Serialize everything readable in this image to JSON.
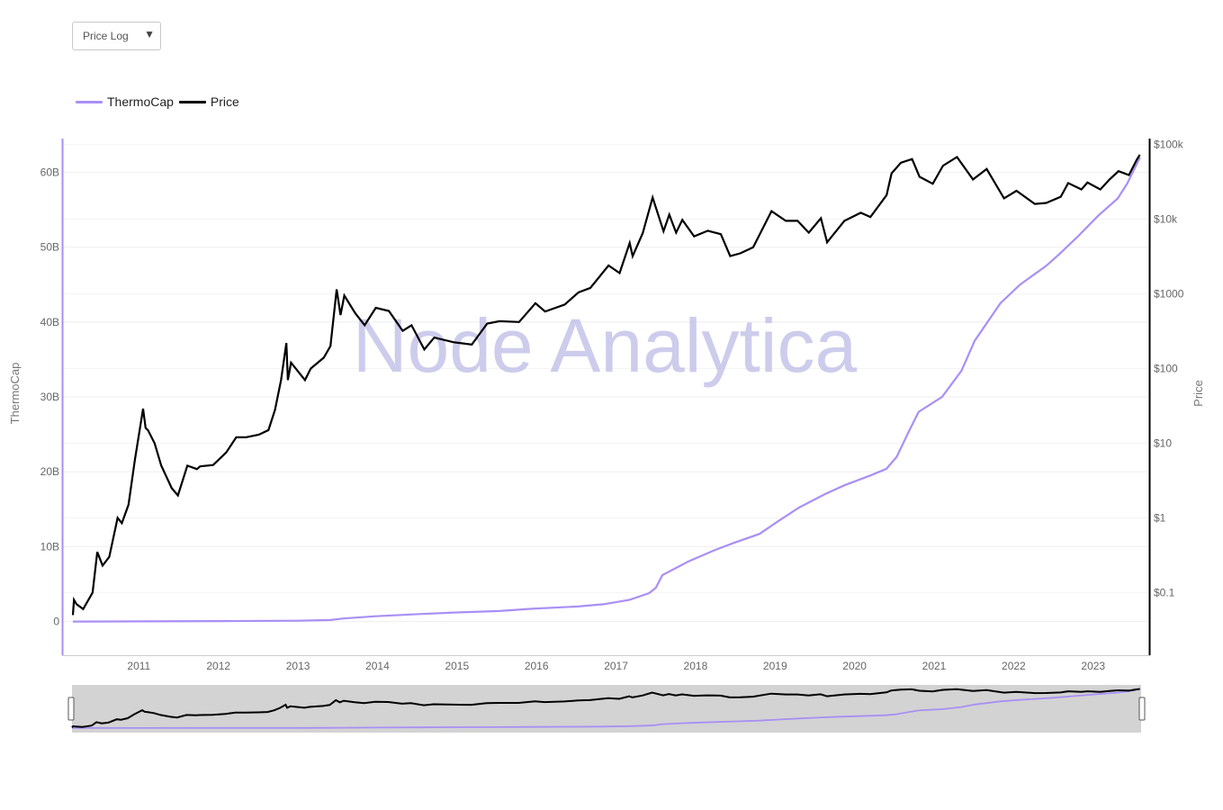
{
  "dropdown": {
    "selected": "Price Log"
  },
  "legend": [
    {
      "name": "ThermoCap",
      "color": "#a98ff5"
    },
    {
      "name": "Price",
      "color": "#000000"
    }
  ],
  "watermark": "Node Analytica",
  "colors": {
    "thermocap": "#a98ff5",
    "price": "#000000",
    "navigator_bg": "#d3d3d3",
    "grid": "#eeeeee"
  },
  "chart_data": {
    "type": "line",
    "title": "",
    "xlabel": "",
    "x_ticks": [
      "2011",
      "2012",
      "2013",
      "2014",
      "2015",
      "2016",
      "2017",
      "2018",
      "2019",
      "2020",
      "2021",
      "2022",
      "2023"
    ],
    "left_axis": {
      "title": "ThermoCap",
      "range": [
        -4.5,
        64.5
      ],
      "tick_values": [
        0,
        10,
        20,
        30,
        40,
        50,
        60
      ],
      "tick_labels": [
        "0",
        "10B",
        "20B",
        "30B",
        "40B",
        "50B",
        "60B"
      ]
    },
    "right_axis": {
      "title": "Price",
      "scale": "log",
      "range": [
        0.0145,
        120000
      ],
      "tick_values": [
        0.1,
        1,
        10,
        100,
        1000,
        10000,
        100000
      ],
      "tick_labels": [
        "$0.1",
        "$1",
        "$10",
        "$100",
        "$1000",
        "$10k",
        "$100k"
      ]
    },
    "x_range": [
      "2010-07-15",
      "2024-03-20"
    ],
    "series": [
      {
        "name": "ThermoCap",
        "axis": "left",
        "unit": "B",
        "points": [
          [
            "2010-07-15",
            0
          ],
          [
            "2011-06-01",
            0.02
          ],
          [
            "2012-06-01",
            0.05
          ],
          [
            "2013-06-01",
            0.1
          ],
          [
            "2013-11-01",
            0.2
          ],
          [
            "2014-01-01",
            0.4
          ],
          [
            "2014-06-01",
            0.7
          ],
          [
            "2015-01-01",
            1.0
          ],
          [
            "2015-06-01",
            1.2
          ],
          [
            "2016-01-01",
            1.4
          ],
          [
            "2016-06-01",
            1.7
          ],
          [
            "2017-01-01",
            2.0
          ],
          [
            "2017-05-01",
            2.3
          ],
          [
            "2017-09-01",
            2.9
          ],
          [
            "2017-12-01",
            3.8
          ],
          [
            "2018-01-01",
            4.5
          ],
          [
            "2018-02-01",
            6.2
          ],
          [
            "2018-06-01",
            8.0
          ],
          [
            "2018-10-01",
            9.5
          ],
          [
            "2019-01-01",
            10.5
          ],
          [
            "2019-05-01",
            11.7
          ],
          [
            "2019-08-01",
            13.5
          ],
          [
            "2019-11-01",
            15.2
          ],
          [
            "2020-03-01",
            17.0
          ],
          [
            "2020-06-01",
            18.2
          ],
          [
            "2020-10-01",
            19.5
          ],
          [
            "2020-12-15",
            20.4
          ],
          [
            "2021-02-01",
            22.0
          ],
          [
            "2021-04-01",
            25.5
          ],
          [
            "2021-05-15",
            28.0
          ],
          [
            "2021-09-01",
            30.0
          ],
          [
            "2021-12-01",
            33.5
          ],
          [
            "2022-02-01",
            37.5
          ],
          [
            "2022-06-01",
            42.5
          ],
          [
            "2022-09-01",
            45.0
          ],
          [
            "2023-01-01",
            47.5
          ],
          [
            "2023-03-01",
            49.0
          ],
          [
            "2023-06-01",
            51.5
          ],
          [
            "2023-09-01",
            54.2
          ],
          [
            "2023-12-01",
            56.5
          ],
          [
            "2024-01-15",
            58.5
          ],
          [
            "2024-03-15",
            62.0
          ]
        ]
      },
      {
        "name": "Price",
        "axis": "right",
        "unit": "$",
        "points": [
          [
            "2010-07-15",
            0.05
          ],
          [
            "2010-07-20",
            0.08
          ],
          [
            "2010-08-01",
            0.07
          ],
          [
            "2010-09-01",
            0.06
          ],
          [
            "2010-10-15",
            0.1
          ],
          [
            "2010-11-06",
            0.35
          ],
          [
            "2010-12-01",
            0.23
          ],
          [
            "2011-01-01",
            0.3
          ],
          [
            "2011-02-09",
            1.0
          ],
          [
            "2011-03-01",
            0.85
          ],
          [
            "2011-04-01",
            1.5
          ],
          [
            "2011-05-01",
            6.0
          ],
          [
            "2011-06-08",
            29.0
          ],
          [
            "2011-06-20",
            16.0
          ],
          [
            "2011-07-01",
            15.0
          ],
          [
            "2011-08-01",
            10.0
          ],
          [
            "2011-09-01",
            5.0
          ],
          [
            "2011-10-20",
            2.5
          ],
          [
            "2011-11-18",
            2.0
          ],
          [
            "2012-01-01",
            5.0
          ],
          [
            "2012-02-15",
            4.5
          ],
          [
            "2012-03-01",
            4.9
          ],
          [
            "2012-05-01",
            5.1
          ],
          [
            "2012-07-01",
            7.5
          ],
          [
            "2012-08-17",
            12.0
          ],
          [
            "2012-10-01",
            12.0
          ],
          [
            "2012-12-01",
            13.0
          ],
          [
            "2013-01-15",
            15.0
          ],
          [
            "2013-02-15",
            28.0
          ],
          [
            "2013-03-15",
            70.0
          ],
          [
            "2013-04-09",
            220.0
          ],
          [
            "2013-04-16",
            70.0
          ],
          [
            "2013-05-01",
            120.0
          ],
          [
            "2013-07-05",
            70.0
          ],
          [
            "2013-08-01",
            100.0
          ],
          [
            "2013-10-01",
            140.0
          ],
          [
            "2013-11-01",
            200.0
          ],
          [
            "2013-11-30",
            1150.0
          ],
          [
            "2013-12-18",
            520.0
          ],
          [
            "2014-01-05",
            950.0
          ],
          [
            "2014-02-25",
            550.0
          ],
          [
            "2014-04-10",
            380.0
          ],
          [
            "2014-06-01",
            650.0
          ],
          [
            "2014-08-01",
            590.0
          ],
          [
            "2014-10-05",
            320.0
          ],
          [
            "2014-11-15",
            380.0
          ],
          [
            "2015-01-14",
            180.0
          ],
          [
            "2015-03-01",
            260.0
          ],
          [
            "2015-06-01",
            225.0
          ],
          [
            "2015-08-24",
            210.0
          ],
          [
            "2015-11-04",
            400.0
          ],
          [
            "2016-01-01",
            430.0
          ],
          [
            "2016-04-01",
            420.0
          ],
          [
            "2016-06-17",
            750.0
          ],
          [
            "2016-08-01",
            580.0
          ],
          [
            "2016-11-01",
            720.0
          ],
          [
            "2017-01-05",
            1050.0
          ],
          [
            "2017-03-01",
            1200.0
          ],
          [
            "2017-05-25",
            2400.0
          ],
          [
            "2017-07-16",
            1900.0
          ],
          [
            "2017-09-01",
            4800.0
          ],
          [
            "2017-09-15",
            3200.0
          ],
          [
            "2017-11-01",
            6500.0
          ],
          [
            "2017-12-17",
            19500.0
          ],
          [
            "2018-02-06",
            6900.0
          ],
          [
            "2018-03-05",
            11500.0
          ],
          [
            "2018-04-06",
            6600.0
          ],
          [
            "2018-05-05",
            9800.0
          ],
          [
            "2018-06-29",
            5900.0
          ],
          [
            "2018-09-01",
            7000.0
          ],
          [
            "2018-11-01",
            6300.0
          ],
          [
            "2018-12-15",
            3200.0
          ],
          [
            "2019-02-01",
            3500.0
          ],
          [
            "2019-04-01",
            4200.0
          ],
          [
            "2019-06-26",
            12800.0
          ],
          [
            "2019-09-01",
            9500.0
          ],
          [
            "2019-10-26",
            9500.0
          ],
          [
            "2019-12-17",
            6600.0
          ],
          [
            "2020-02-12",
            10300.0
          ],
          [
            "2020-03-12",
            4900.0
          ],
          [
            "2020-06-01",
            9500.0
          ],
          [
            "2020-08-17",
            12200.0
          ],
          [
            "2020-10-01",
            10700.0
          ],
          [
            "2020-12-16",
            21000.0
          ],
          [
            "2021-01-08",
            41000.0
          ],
          [
            "2021-02-21",
            57000.0
          ],
          [
            "2021-04-14",
            64000.0
          ],
          [
            "2021-05-19",
            37000.0
          ],
          [
            "2021-07-20",
            29800.0
          ],
          [
            "2021-09-06",
            52000.0
          ],
          [
            "2021-11-10",
            68000.0
          ],
          [
            "2022-01-24",
            34000.0
          ],
          [
            "2022-03-29",
            47000.0
          ],
          [
            "2022-06-18",
            19000.0
          ],
          [
            "2022-08-15",
            24000.0
          ],
          [
            "2022-11-09",
            16000.0
          ],
          [
            "2023-01-01",
            16500.0
          ],
          [
            "2023-03-10",
            20000.0
          ],
          [
            "2023-04-14",
            30500.0
          ],
          [
            "2023-06-15",
            25000.0
          ],
          [
            "2023-07-13",
            31000.0
          ],
          [
            "2023-09-11",
            25000.0
          ],
          [
            "2023-10-24",
            34000.0
          ],
          [
            "2023-12-05",
            44000.0
          ],
          [
            "2024-01-23",
            39000.0
          ],
          [
            "2024-02-28",
            62000.0
          ],
          [
            "2024-03-14",
            73000.0
          ]
        ]
      }
    ]
  }
}
